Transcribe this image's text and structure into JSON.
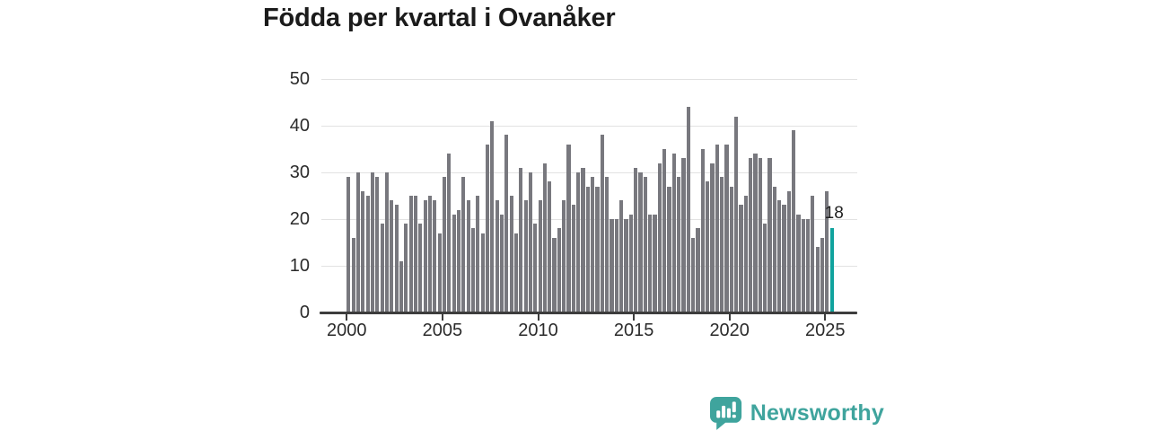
{
  "title": "Födda per kvartal i Ovanåker",
  "chart_data": {
    "type": "bar",
    "title": "Födda per kvartal i Ovanåker",
    "xlabel": "",
    "ylabel": "",
    "ylim": [
      0,
      50
    ],
    "yticks": [
      0,
      10,
      20,
      30,
      40,
      50
    ],
    "xtick_years": [
      "2000",
      "2005",
      "2010",
      "2015",
      "2020",
      "2025"
    ],
    "grid": true,
    "legend_position": "none",
    "series_name": "Födda per kvartal",
    "start_period": "2000 Q1",
    "end_period": "2025 Q2",
    "values": [
      29,
      16,
      30,
      26,
      25,
      30,
      29,
      19,
      30,
      24,
      23,
      11,
      19,
      25,
      25,
      19,
      24,
      25,
      24,
      17,
      29,
      34,
      21,
      22,
      29,
      24,
      18,
      25,
      17,
      36,
      41,
      24,
      21,
      38,
      25,
      17,
      31,
      24,
      30,
      19,
      24,
      32,
      28,
      16,
      18,
      24,
      36,
      23,
      30,
      31,
      27,
      29,
      27,
      38,
      29,
      20,
      20,
      24,
      20,
      21,
      31,
      30,
      29,
      21,
      21,
      32,
      35,
      27,
      34,
      29,
      33,
      44,
      16,
      18,
      35,
      28,
      32,
      36,
      29,
      36,
      27,
      42,
      23,
      25,
      33,
      34,
      33,
      19,
      33,
      27,
      24,
      23,
      26,
      39,
      21,
      20,
      20,
      25,
      14,
      16,
      26,
      18
    ],
    "bar_color": "#78787e",
    "highlight": {
      "index": 101,
      "period": "2025 Q2",
      "value": 18,
      "label": "18",
      "color": "#10a39e"
    }
  },
  "branding": {
    "name": "Newsworthy",
    "color": "#3fa49d"
  }
}
